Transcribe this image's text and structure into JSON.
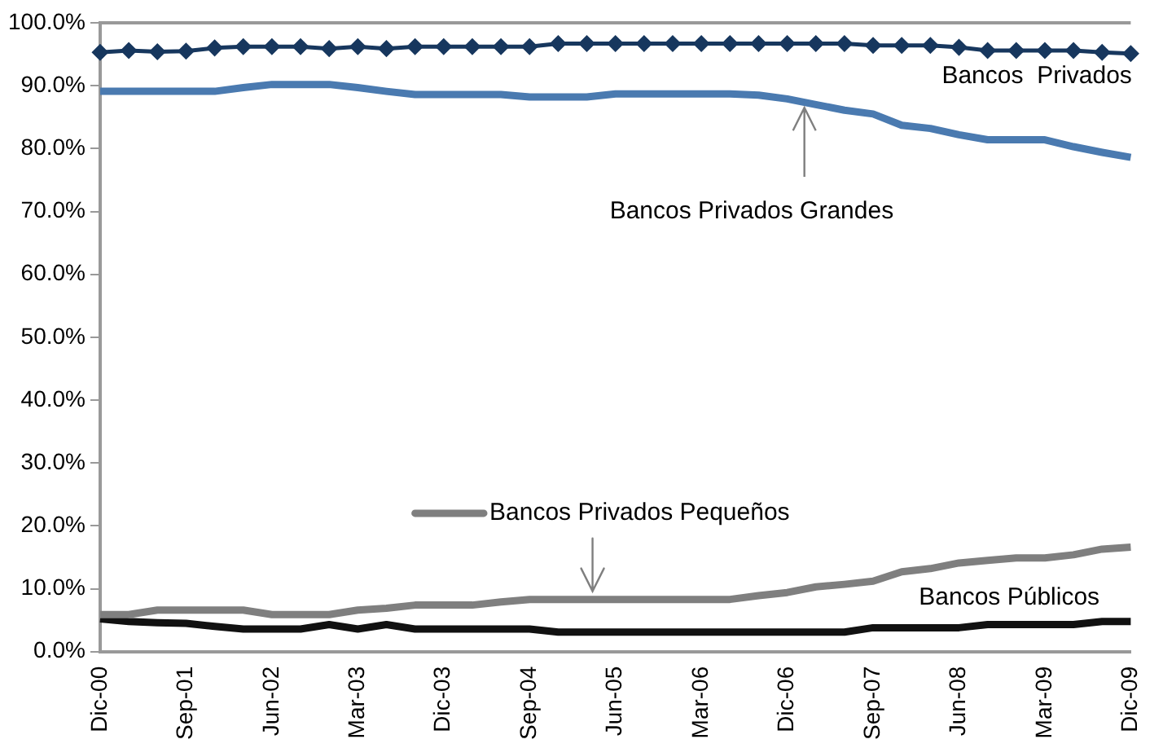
{
  "chart_data": {
    "type": "line",
    "categories": [
      "Dic-00",
      null,
      null,
      "Sep-01",
      null,
      null,
      "Jun-02",
      null,
      null,
      "Mar-03",
      null,
      null,
      "Dic-03",
      null,
      null,
      "Sep-04",
      null,
      null,
      "Jun-05",
      null,
      null,
      "Mar-06",
      null,
      null,
      "Dic-06",
      null,
      null,
      "Sep-07",
      null,
      null,
      "Jun-08",
      null,
      null,
      "Mar-09",
      null,
      null,
      "Dic-09"
    ],
    "series": [
      {
        "name": "Bancos  Privados",
        "color": "#17375e",
        "marker": "diamond",
        "values": [
          95.3,
          95.6,
          95.4,
          95.5,
          96.0,
          96.2,
          96.2,
          96.2,
          95.9,
          96.2,
          95.9,
          96.2,
          96.2,
          96.2,
          96.2,
          96.2,
          96.7,
          96.7,
          96.7,
          96.7,
          96.7,
          96.7,
          96.7,
          96.7,
          96.7,
          96.7,
          96.7,
          96.4,
          96.4,
          96.4,
          96.1,
          95.6,
          95.6,
          95.6,
          95.6,
          95.3,
          95.1
        ]
      },
      {
        "name": "Bancos Privados Grandes",
        "color": "#4a7ab0",
        "marker": "none",
        "values": [
          89.1,
          89.1,
          89.1,
          89.1,
          89.1,
          89.7,
          90.2,
          90.2,
          90.2,
          89.7,
          89.1,
          88.6,
          88.6,
          88.6,
          88.6,
          88.2,
          88.2,
          88.2,
          88.7,
          88.7,
          88.7,
          88.7,
          88.7,
          88.5,
          87.9,
          87.0,
          86.1,
          85.5,
          83.7,
          83.2,
          82.2,
          81.4,
          81.4,
          81.4,
          80.3,
          79.4,
          78.6
        ]
      },
      {
        "name": "Bancos Privados Pequeños",
        "color": "#7f7f7f",
        "marker": "none",
        "values": [
          5.9,
          5.9,
          6.6,
          6.6,
          6.6,
          6.6,
          5.9,
          5.9,
          5.9,
          6.6,
          6.9,
          7.4,
          7.4,
          7.4,
          7.9,
          8.3,
          8.3,
          8.3,
          8.3,
          8.3,
          8.3,
          8.3,
          8.3,
          8.9,
          9.4,
          10.3,
          10.7,
          11.2,
          12.7,
          13.2,
          14.1,
          14.5,
          14.9,
          14.9,
          15.4,
          16.3,
          16.6
        ]
      },
      {
        "name": "Bancos Públicos",
        "color": "#111111",
        "marker": "none",
        "values": [
          5.2,
          4.8,
          4.6,
          4.5,
          4.0,
          3.6,
          3.6,
          3.6,
          4.3,
          3.6,
          4.3,
          3.6,
          3.6,
          3.6,
          3.6,
          3.6,
          3.1,
          3.1,
          3.1,
          3.1,
          3.1,
          3.1,
          3.1,
          3.1,
          3.1,
          3.1,
          3.1,
          3.8,
          3.8,
          3.8,
          3.8,
          4.3,
          4.3,
          4.3,
          4.3,
          4.8,
          4.8
        ]
      }
    ],
    "ylim": [
      0,
      100
    ],
    "yticks": [
      {
        "value": 0,
        "label": "0.0%"
      },
      {
        "value": 10,
        "label": "10.0%"
      },
      {
        "value": 20,
        "label": "20.0%"
      },
      {
        "value": 30,
        "label": "30.0%"
      },
      {
        "value": 40,
        "label": "40.0%"
      },
      {
        "value": 50,
        "label": "50.0%"
      },
      {
        "value": 60,
        "label": "60.0%"
      },
      {
        "value": 70,
        "label": "70.0%"
      },
      {
        "value": 80,
        "label": "80.0%"
      },
      {
        "value": 90,
        "label": "90.0%"
      },
      {
        "value": 100,
        "label": "100.0%"
      }
    ],
    "grid": false,
    "legend": "center"
  }
}
